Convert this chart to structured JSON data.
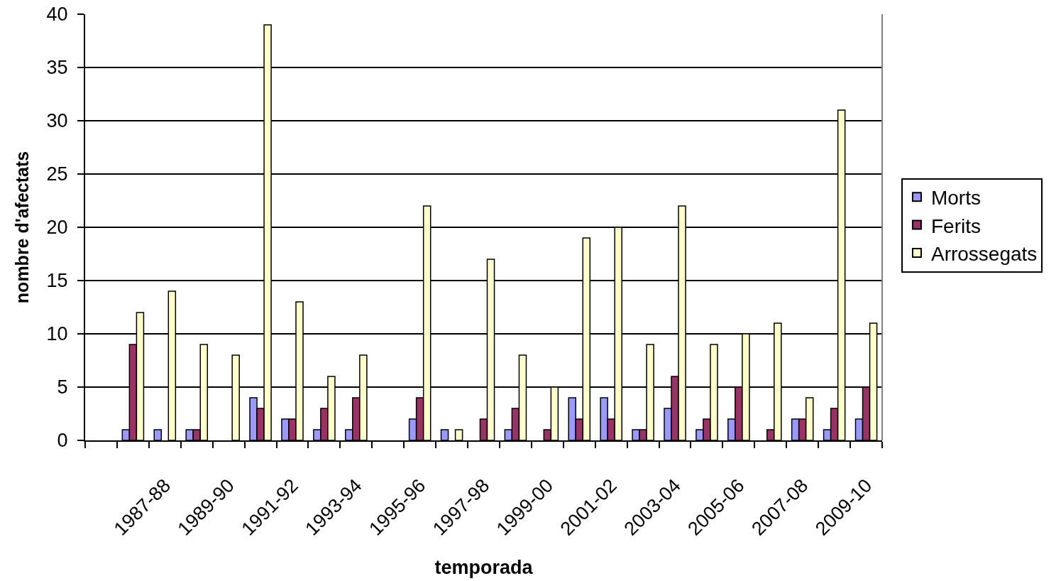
{
  "chart_data": {
    "type": "bar",
    "xlabel": "temporada",
    "ylabel": "nombre d'afectats",
    "categories": [
      null,
      null,
      "1987-88",
      null,
      "1989-90",
      null,
      "1991-92",
      null,
      "1993-94",
      null,
      "1995-96",
      null,
      "1997-98",
      null,
      "1999-00",
      null,
      "2001-02",
      null,
      "2003-04",
      null,
      "2005-06",
      null,
      "2007-08",
      null,
      "2009-10"
    ],
    "series": [
      {
        "name": "Morts",
        "color": "#9999ff",
        "values": [
          null,
          1,
          1,
          1,
          null,
          4,
          2,
          1,
          1,
          null,
          2,
          1,
          null,
          1,
          null,
          4,
          4,
          1,
          3,
          1,
          2,
          null,
          2,
          1,
          2
        ]
      },
      {
        "name": "Ferits",
        "color": "#993366",
        "values": [
          null,
          9,
          null,
          1,
          null,
          3,
          2,
          3,
          4,
          null,
          4,
          null,
          2,
          3,
          1,
          2,
          2,
          1,
          6,
          2,
          5,
          1,
          2,
          3,
          5
        ]
      },
      {
        "name": "Arrossegats",
        "color": "#ffffcc",
        "values": [
          null,
          12,
          14,
          9,
          8,
          39,
          13,
          6,
          8,
          null,
          22,
          1,
          17,
          8,
          5,
          19,
          20,
          9,
          22,
          9,
          10,
          11,
          4,
          31,
          11
        ]
      }
    ],
    "ylim": [
      0,
      40
    ],
    "yticks": [
      0,
      5,
      10,
      15,
      20,
      25,
      30,
      35,
      40
    ],
    "grid": "y",
    "legend": "right"
  }
}
